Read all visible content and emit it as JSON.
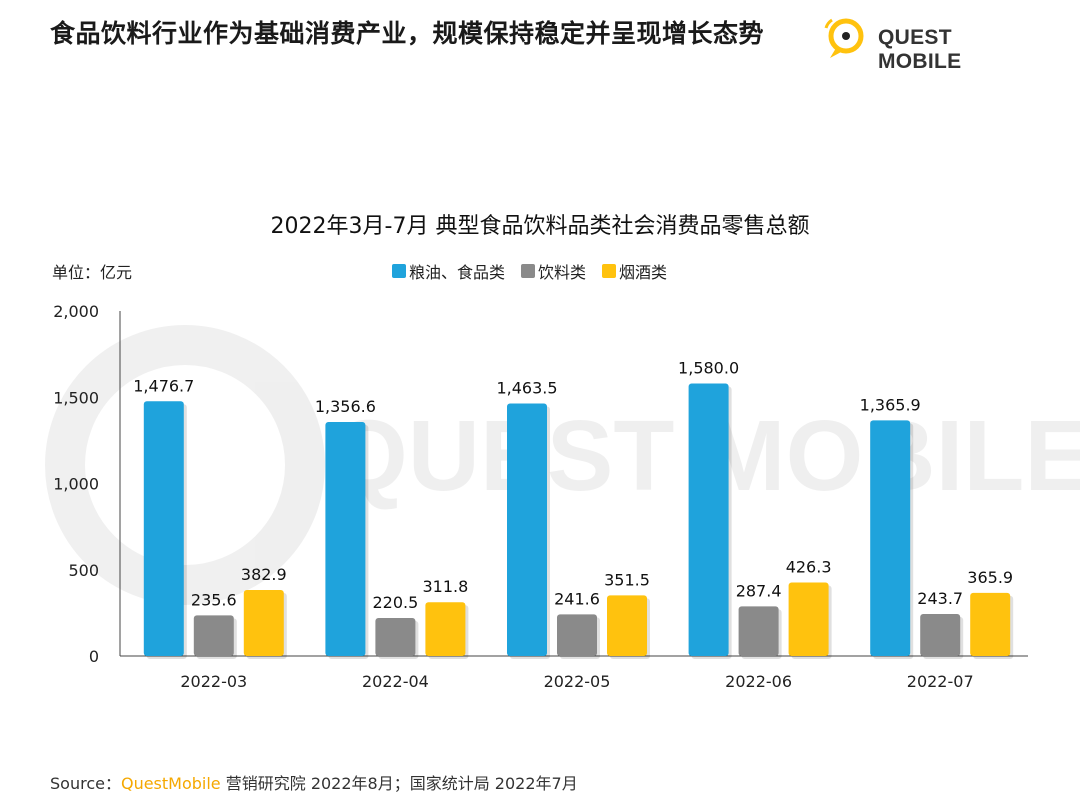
{
  "header": {
    "headline": "食品饮料行业作为基础消费产业，规模保持稳定并呈现增长态势",
    "logo_text": "QUEST MOBILE"
  },
  "chart_data": {
    "type": "bar",
    "title": "2022年3月-7月 典型食品饮料品类社会消费品零售总额",
    "unit_label": "单位：亿元",
    "categories": [
      "2022-03",
      "2022-04",
      "2022-05",
      "2022-06",
      "2022-07"
    ],
    "series": [
      {
        "name": "粮油、食品类",
        "values": [
          1476.7,
          1356.6,
          1463.5,
          1580.0,
          1365.9
        ],
        "labels": [
          "1,476.7",
          "1,356.6",
          "1,463.5",
          "1,580.0",
          "1,365.9"
        ],
        "color": "#1fa3dc"
      },
      {
        "name": "饮料类",
        "values": [
          235.6,
          220.5,
          241.6,
          287.4,
          243.7
        ],
        "labels": [
          "235.6",
          "220.5",
          "241.6",
          "287.4",
          "243.7"
        ],
        "color": "#8a8a8a"
      },
      {
        "name": "烟酒类",
        "values": [
          382.9,
          311.8,
          351.5,
          426.3,
          365.9
        ],
        "labels": [
          "382.9",
          "311.8",
          "351.5",
          "426.3",
          "365.9"
        ],
        "color": "#ffc20e"
      }
    ],
    "ylim": [
      0,
      2000
    ],
    "yticks": [
      "0",
      "500",
      "1,000",
      "1,500",
      "2,000"
    ],
    "ytick_values": [
      0,
      500,
      1000,
      1500,
      2000
    ],
    "grid": false,
    "legend_position": "top-center",
    "watermark": "QUEST MOBILE"
  },
  "footer": {
    "source_prefix": "Source：",
    "source_brand": "QuestMobile",
    "source_rest": " 营销研究院 2022年8月；国家统计局 2022年7月"
  }
}
